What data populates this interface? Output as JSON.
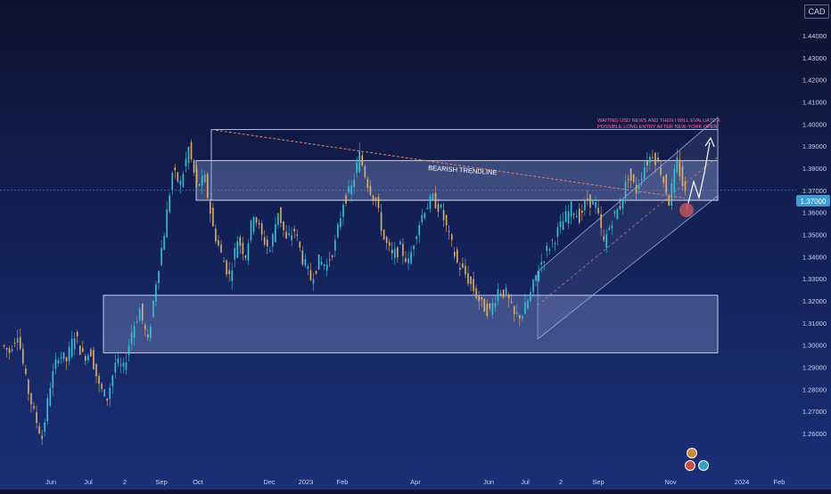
{
  "currency_badge": "CAD",
  "current_price_label": "1.37000",
  "chart_data": {
    "type": "candlestick",
    "instrument_currency": "CAD",
    "y_axis_ticks": [
      1.44,
      1.43,
      1.42,
      1.41,
      1.4,
      1.39,
      1.38,
      1.37,
      1.36,
      1.35,
      1.34,
      1.33,
      1.32,
      1.31,
      1.3,
      1.29,
      1.28,
      1.27,
      1.26
    ],
    "y_axis_labels": [
      "1.44000",
      "1.43000",
      "1.42000",
      "1.41000",
      "1.40000",
      "1.39000",
      "1.38000",
      "1.37000",
      "1.36000",
      "1.35000",
      "1.34000",
      "1.33000",
      "1.32000",
      "1.31000",
      "1.30000",
      "1.29000",
      "1.28000",
      "1.27000",
      "1.26000"
    ],
    "ylim": [
      1.2535,
      1.4545
    ],
    "x_axis_labels": [
      "Jun",
      "Jul",
      "2",
      "Sep",
      "Oct",
      "Dec",
      "2023",
      "Feb",
      "Apr",
      "Jun",
      "Jul",
      "2",
      "Sep",
      "Nov",
      "2024",
      "Feb"
    ],
    "price_path": [
      [
        1.29,
        1.3
      ],
      [
        1.285,
        1.297
      ],
      [
        1.294,
        1.306
      ],
      [
        1.298,
        1.284
      ],
      [
        1.279,
        1.269
      ],
      [
        1.268,
        1.258
      ],
      [
        1.259,
        1.282
      ],
      [
        1.283,
        1.296
      ],
      [
        1.299,
        1.293
      ],
      [
        1.295,
        1.305
      ],
      [
        1.303,
        1.295
      ],
      [
        1.29,
        1.297
      ],
      [
        1.297,
        1.281
      ],
      [
        1.284,
        1.276
      ],
      [
        1.278,
        1.292
      ],
      [
        1.293,
        1.289
      ],
      [
        1.291,
        1.306
      ],
      [
        1.311,
        1.316
      ],
      [
        1.315,
        1.301
      ],
      [
        1.306,
        1.329
      ],
      [
        1.336,
        1.351
      ],
      [
        1.357,
        1.378
      ],
      [
        1.381,
        1.373
      ],
      [
        1.375,
        1.389
      ],
      [
        1.381,
        1.372
      ],
      [
        1.366,
        1.375
      ],
      [
        1.372,
        1.353
      ],
      [
        1.357,
        1.341
      ],
      [
        1.343,
        1.331
      ],
      [
        1.336,
        1.348
      ],
      [
        1.349,
        1.341
      ],
      [
        1.345,
        1.36
      ],
      [
        1.357,
        1.349
      ],
      [
        1.353,
        1.343
      ],
      [
        1.341,
        1.361
      ],
      [
        1.359,
        1.347
      ],
      [
        1.343,
        1.352
      ],
      [
        1.351,
        1.339
      ],
      [
        1.337,
        1.33
      ],
      [
        1.33,
        1.338
      ],
      [
        1.342,
        1.336
      ],
      [
        1.334,
        1.346
      ],
      [
        1.35,
        1.365
      ],
      [
        1.365,
        1.371
      ],
      [
        1.373,
        1.386
      ],
      [
        1.385,
        1.373
      ],
      [
        1.371,
        1.365
      ],
      [
        1.36,
        1.348
      ],
      [
        1.351,
        1.34
      ],
      [
        1.338,
        1.344
      ],
      [
        1.348,
        1.337
      ],
      [
        1.34,
        1.352
      ],
      [
        1.358,
        1.362
      ],
      [
        1.361,
        1.366
      ],
      [
        1.364,
        1.361
      ],
      [
        1.361,
        1.349
      ],
      [
        1.349,
        1.337
      ],
      [
        1.337,
        1.332
      ],
      [
        1.33,
        1.325
      ],
      [
        1.325,
        1.318
      ],
      [
        1.318,
        1.315
      ],
      [
        1.315,
        1.325
      ],
      [
        1.328,
        1.323
      ],
      [
        1.319,
        1.313
      ],
      [
        1.311,
        1.314
      ],
      [
        1.317,
        1.323
      ],
      [
        1.323,
        1.335
      ],
      [
        1.338,
        1.343
      ],
      [
        1.345,
        1.349
      ],
      [
        1.35,
        1.356
      ],
      [
        1.355,
        1.362
      ],
      [
        1.362,
        1.358
      ],
      [
        1.355,
        1.366
      ],
      [
        1.37,
        1.363
      ],
      [
        1.358,
        1.346
      ],
      [
        1.35,
        1.357
      ],
      [
        1.358,
        1.363
      ],
      [
        1.364,
        1.377
      ],
      [
        1.375,
        1.37
      ],
      [
        1.372,
        1.381
      ],
      [
        1.385,
        1.387
      ],
      [
        1.388,
        1.379
      ],
      [
        1.379,
        1.365
      ],
      [
        1.368,
        1.383
      ],
      [
        1.38,
        1.368
      ]
    ],
    "zones": [
      {
        "name": "upper supply zone",
        "y_top": 1.3835,
        "y_bottom": 1.3655
      },
      {
        "name": "lower demand zone",
        "y_top": 1.3225,
        "y_bottom": 1.2965
      }
    ],
    "upper_bound_line": 1.3975,
    "trendline_label": "BEARISH TRENDLINE",
    "annotation": "WAITING USD NEWS AND THEN I WILL EVALUATE A POSSIBLE LONG ENTRY AFTER NEW-YORK OPEN",
    "colors": {
      "bull_candle": "#35c4d4",
      "bear_candle": "#e0b06a",
      "trendline": "#e0806a",
      "zone_fill": "#8d9fd8",
      "channel": "#9aa8d8",
      "marker": "#c05060",
      "annotation": "#ff6f9a",
      "price_line": "#3a9bd6"
    }
  }
}
